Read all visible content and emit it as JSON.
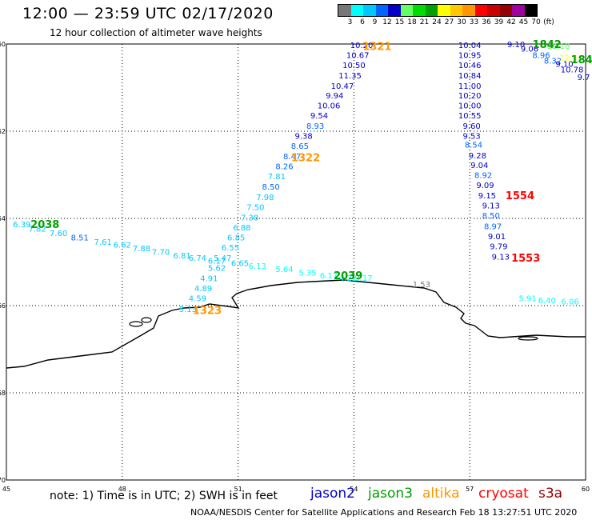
{
  "header": {
    "title": "12:00 — 23:59 UTC 02/17/2020",
    "subtitle": "12 hour collection of altimeter wave heights"
  },
  "color_scale": {
    "unit_label": "(ft)",
    "labels": [
      "3",
      "6",
      "9",
      "12",
      "15",
      "18",
      "21",
      "24",
      "27",
      "30",
      "33",
      "36",
      "39",
      "42",
      "45",
      "70"
    ],
    "colors": [
      "#777777",
      "#00ffff",
      "#00c8ff",
      "#0064ff",
      "#0000c8",
      "#64ff64",
      "#00dc00",
      "#00a000",
      "#ffff00",
      "#ffc800",
      "#ff9600",
      "#ff0000",
      "#c80000",
      "#960000",
      "#a000a0",
      "#000000"
    ]
  },
  "map": {
    "lat_labels": [
      {
        "lat": -60,
        "text": "-60"
      },
      {
        "lat": -62,
        "text": "-62"
      },
      {
        "lat": -64,
        "text": "-64"
      },
      {
        "lat": -66,
        "text": "-66"
      },
      {
        "lat": -68,
        "text": "-68"
      },
      {
        "lat": -70,
        "text": "-70"
      }
    ],
    "lon_labels": [
      {
        "lon": 45,
        "text": "45"
      },
      {
        "lon": 48,
        "text": "48"
      },
      {
        "lon": 51,
        "text": "51"
      },
      {
        "lon": 54,
        "text": "54"
      },
      {
        "lon": 57,
        "text": "57"
      },
      {
        "lon": 60,
        "text": "60"
      }
    ],
    "measurements": [
      {
        "lon": 54.2,
        "lat": -60.02,
        "text": "10.20",
        "color": "#0000c8"
      },
      {
        "lon": 54.1,
        "lat": -60.25,
        "text": "10.67",
        "color": "#0000c8"
      },
      {
        "lon": 54.0,
        "lat": -60.48,
        "text": "10.50",
        "color": "#0000c8"
      },
      {
        "lon": 53.9,
        "lat": -60.72,
        "text": "11.35",
        "color": "#0000c8"
      },
      {
        "lon": 53.7,
        "lat": -60.95,
        "text": "10.47",
        "color": "#0000c8"
      },
      {
        "lon": 53.5,
        "lat": -61.17,
        "text": "9.94",
        "color": "#0000c8"
      },
      {
        "lon": 53.35,
        "lat": -61.4,
        "text": "10.06",
        "color": "#0000c8"
      },
      {
        "lon": 53.1,
        "lat": -61.63,
        "text": "9.54",
        "color": "#0000c8"
      },
      {
        "lon": 53.0,
        "lat": -61.87,
        "text": "8.93",
        "color": "#0064ff"
      },
      {
        "lon": 52.7,
        "lat": -62.1,
        "text": "9.38",
        "color": "#0000c8"
      },
      {
        "lon": 52.6,
        "lat": -62.33,
        "text": "8.65",
        "color": "#0064ff"
      },
      {
        "lon": 52.4,
        "lat": -62.57,
        "text": "8.47",
        "color": "#0064ff"
      },
      {
        "lon": 52.2,
        "lat": -62.8,
        "text": "8.26",
        "color": "#0064ff"
      },
      {
        "lon": 52.0,
        "lat": -63.03,
        "text": "7.81",
        "color": "#00c8ff"
      },
      {
        "lon": 51.85,
        "lat": -63.27,
        "text": "8.50",
        "color": "#0064ff"
      },
      {
        "lon": 51.7,
        "lat": -63.5,
        "text": "7.98",
        "color": "#00c8ff"
      },
      {
        "lon": 51.45,
        "lat": -63.73,
        "text": "7.50",
        "color": "#00c8ff"
      },
      {
        "lon": 51.3,
        "lat": -63.97,
        "text": "7.38",
        "color": "#00c8ff"
      },
      {
        "lon": 51.1,
        "lat": -64.2,
        "text": "6.88",
        "color": "#00c8ff"
      },
      {
        "lon": 50.95,
        "lat": -64.43,
        "text": "6.85",
        "color": "#00c8ff"
      },
      {
        "lon": 50.8,
        "lat": -64.66,
        "text": "6.55",
        "color": "#00c8ff"
      },
      {
        "lon": 50.6,
        "lat": -64.9,
        "text": "5.47",
        "color": "#00c8ff"
      },
      {
        "lon": 50.45,
        "lat": -65.13,
        "text": "5.62",
        "color": "#00c8ff"
      },
      {
        "lon": 50.25,
        "lat": -65.37,
        "text": "4.91",
        "color": "#00c8ff"
      },
      {
        "lon": 50.1,
        "lat": -65.6,
        "text": "4.89",
        "color": "#00c8ff"
      },
      {
        "lon": 49.95,
        "lat": -65.83,
        "text": "4.59",
        "color": "#00c8ff"
      },
      {
        "lon": 49.7,
        "lat": -66.07,
        "text": "5.13",
        "color": "#00c8ff"
      },
      {
        "lon": 45.4,
        "lat": -64.13,
        "text": "6.39",
        "color": "#00c8ff"
      },
      {
        "lon": 45.8,
        "lat": -64.23,
        "text": "7.82",
        "color": "#00c8ff"
      },
      {
        "lon": 46.35,
        "lat": -64.33,
        "text": "7.60",
        "color": "#00c8ff"
      },
      {
        "lon": 46.9,
        "lat": -64.43,
        "text": "8.51",
        "color": "#0064ff"
      },
      {
        "lon": 47.5,
        "lat": -64.53,
        "text": "7.61",
        "color": "#00c8ff"
      },
      {
        "lon": 48.0,
        "lat": -64.6,
        "text": "6.62",
        "color": "#00c8ff"
      },
      {
        "lon": 48.5,
        "lat": -64.68,
        "text": "7.88",
        "color": "#00c8ff"
      },
      {
        "lon": 49.0,
        "lat": -64.76,
        "text": "7.70",
        "color": "#00c8ff"
      },
      {
        "lon": 49.55,
        "lat": -64.84,
        "text": "6.81",
        "color": "#00c8ff"
      },
      {
        "lon": 49.95,
        "lat": -64.9,
        "text": "6.74",
        "color": "#00c8ff"
      },
      {
        "lon": 50.45,
        "lat": -64.96,
        "text": "6.17",
        "color": "#00c8ff"
      },
      {
        "lon": 51.05,
        "lat": -65.02,
        "text": "6.65",
        "color": "#00c8ff"
      },
      {
        "lon": 51.5,
        "lat": -65.08,
        "text": "6.13",
        "color": "#00ffff"
      },
      {
        "lon": 52.2,
        "lat": -65.16,
        "text": "5.64",
        "color": "#00ffff"
      },
      {
        "lon": 52.8,
        "lat": -65.24,
        "text": "5.35",
        "color": "#00ffff"
      },
      {
        "lon": 53.35,
        "lat": -65.3,
        "text": "6.17",
        "color": "#00ffff"
      },
      {
        "lon": 53.85,
        "lat": -65.36,
        "text": "4.22",
        "color": "#00ffff"
      },
      {
        "lon": 54.25,
        "lat": -65.36,
        "text": "3.17",
        "color": "#00ffff"
      },
      {
        "lon": 57.0,
        "lat": -60.02,
        "text": "10.04",
        "color": "#0000c8"
      },
      {
        "lon": 57.0,
        "lat": -60.25,
        "text": "10.95",
        "color": "#0000c8"
      },
      {
        "lon": 57.0,
        "lat": -60.48,
        "text": "10.46",
        "color": "#0000c8"
      },
      {
        "lon": 57.0,
        "lat": -60.72,
        "text": "10.84",
        "color": "#0000c8"
      },
      {
        "lon": 57.0,
        "lat": -60.95,
        "text": "11.00",
        "color": "#0000c8"
      },
      {
        "lon": 57.0,
        "lat": -61.17,
        "text": "10.20",
        "color": "#0000c8"
      },
      {
        "lon": 57.0,
        "lat": -61.4,
        "text": "10.00",
        "color": "#0000c8"
      },
      {
        "lon": 57.0,
        "lat": -61.63,
        "text": "10.55",
        "color": "#0000c8"
      },
      {
        "lon": 57.05,
        "lat": -61.87,
        "text": "9.60",
        "color": "#0000c8"
      },
      {
        "lon": 57.05,
        "lat": -62.1,
        "text": "9.53",
        "color": "#0000c8"
      },
      {
        "lon": 57.1,
        "lat": -62.3,
        "text": "8.54",
        "color": "#0064ff"
      },
      {
        "lon": 57.2,
        "lat": -62.55,
        "text": "9.28",
        "color": "#0000c8"
      },
      {
        "lon": 57.25,
        "lat": -62.77,
        "text": "9.04",
        "color": "#0000c8"
      },
      {
        "lon": 57.35,
        "lat": -63.0,
        "text": "8.92",
        "color": "#0064ff"
      },
      {
        "lon": 57.4,
        "lat": -63.23,
        "text": "9.09",
        "color": "#0000c8"
      },
      {
        "lon": 57.45,
        "lat": -63.47,
        "text": "9.15",
        "color": "#0000c8"
      },
      {
        "lon": 57.55,
        "lat": -63.7,
        "text": "9.13",
        "color": "#0000c8"
      },
      {
        "lon": 57.55,
        "lat": -63.93,
        "text": "8.50",
        "color": "#0064ff"
      },
      {
        "lon": 57.6,
        "lat": -64.17,
        "text": "8.97",
        "color": "#0064ff"
      },
      {
        "lon": 57.7,
        "lat": -64.4,
        "text": "9.01",
        "color": "#0000c8"
      },
      {
        "lon": 57.75,
        "lat": -64.63,
        "text": "9.79",
        "color": "#0000c8"
      },
      {
        "lon": 57.8,
        "lat": -64.87,
        "text": "9.13",
        "color": "#0000c8"
      },
      {
        "lon": 58.2,
        "lat": -60.0,
        "text": "9.10",
        "color": "#0000c8"
      },
      {
        "lon": 58.55,
        "lat": -60.1,
        "text": "9.06",
        "color": "#0000c8"
      },
      {
        "lon": 58.85,
        "lat": -60.25,
        "text": "8.96",
        "color": "#0064ff"
      },
      {
        "lon": 59.15,
        "lat": -60.38,
        "text": "8.32",
        "color": "#0064ff"
      },
      {
        "lon": 59.45,
        "lat": -60.45,
        "text": "9.10",
        "color": "#0000c8"
      },
      {
        "lon": 59.65,
        "lat": -60.58,
        "text": "10.78",
        "color": "#0000c8"
      },
      {
        "lon": 59.95,
        "lat": -60.75,
        "text": "9.7",
        "color": "#0000c8"
      },
      {
        "lon": 59.3,
        "lat": -60.04,
        "text": "12.18",
        "color": "#64ff64"
      },
      {
        "lon": 59.55,
        "lat": -60.3,
        "text": "12.3",
        "color": "#ffff00"
      },
      {
        "lon": 55.75,
        "lat": -65.5,
        "text": "1.53",
        "color": "#777777"
      },
      {
        "lon": 58.5,
        "lat": -65.83,
        "text": "5.91",
        "color": "#00ffff"
      },
      {
        "lon": 59.0,
        "lat": -65.87,
        "text": "6.40",
        "color": "#00ffff"
      },
      {
        "lon": 59.6,
        "lat": -65.9,
        "text": "6.06",
        "color": "#00ffff"
      }
    ],
    "pass_labels": [
      {
        "lon": 54.6,
        "lat": -60.05,
        "text": "1321",
        "color": "#ff9600"
      },
      {
        "lon": 52.75,
        "lat": -62.6,
        "text": "1322",
        "color": "#ff9600"
      },
      {
        "lon": 50.2,
        "lat": -66.1,
        "text": "1323",
        "color": "#ff9600"
      },
      {
        "lon": 58.3,
        "lat": -63.47,
        "text": "1554",
        "color": "#ff0000"
      },
      {
        "lon": 58.45,
        "lat": -64.9,
        "text": "1553",
        "color": "#ff0000"
      },
      {
        "lon": 46.0,
        "lat": -64.13,
        "text": "2038",
        "color": "#00a000"
      },
      {
        "lon": 53.85,
        "lat": -65.3,
        "text": "2039",
        "color": "#00a000"
      },
      {
        "lon": 59.0,
        "lat": -60.0,
        "text": "1842",
        "color": "#00a000"
      },
      {
        "lon": 59.9,
        "lat": -60.35,
        "text": "184",
        "color": "#00a000"
      }
    ]
  },
  "footer": {
    "note": "note: 1) Time is in UTC; 2) SWH is in feet",
    "satellites": [
      {
        "name": "jason2",
        "color": "#0000c8"
      },
      {
        "name": "jason3",
        "color": "#00a000"
      },
      {
        "name": "altika",
        "color": "#ff9600"
      },
      {
        "name": "cryosat",
        "color": "#ff0000"
      },
      {
        "name": "s3a",
        "color": "#960000"
      }
    ],
    "credit": "NOAA/NESDIS Center for Satellite Applications and Research    Feb 18 13:27:51 UTC 2020"
  }
}
